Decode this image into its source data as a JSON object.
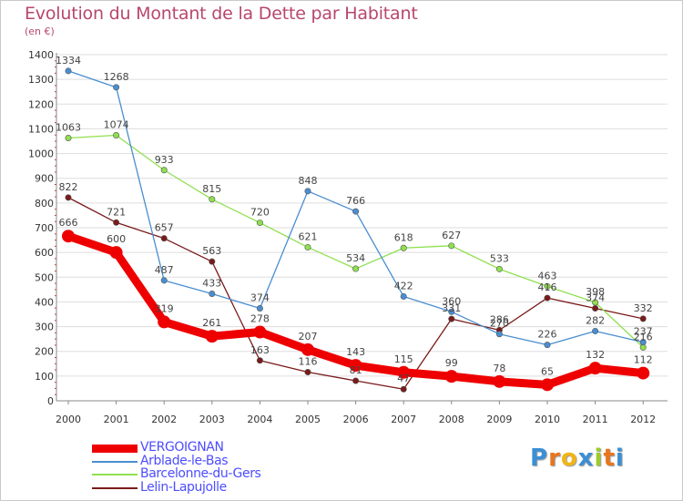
{
  "title": "Evolution du Montant de la Dette par Habitant",
  "subtitle": "(en €)",
  "logo": {
    "letters": [
      "P",
      "r",
      "o",
      "x",
      "i",
      "t",
      "i"
    ],
    "colors": [
      "#3a8fd6",
      "#e8761e",
      "#f2b515",
      "#3a8fd6",
      "#9ccc2c",
      "#e8761e",
      "#3a8fd6"
    ]
  },
  "chart_data": {
    "type": "line",
    "title": "Evolution du Montant de la Dette par Habitant",
    "ylabel": "(en €)",
    "xlabel": "",
    "ylim": [
      0,
      1400
    ],
    "yticks": [
      0,
      100,
      200,
      300,
      400,
      500,
      600,
      700,
      800,
      900,
      1000,
      1100,
      1200,
      1300,
      1400
    ],
    "grid": "horizontal",
    "legend_position": "bottom-left",
    "x": [
      "2000",
      "2001",
      "2002",
      "2003",
      "2004",
      "2005",
      "2006",
      "2007",
      "2008",
      "2009",
      "2010",
      "2011",
      "2012"
    ],
    "series": [
      {
        "name": "Lelin-Lapujolle",
        "color": "#7a1a1a",
        "values": [
          822,
          721,
          657,
          563,
          163,
          116,
          81,
          47,
          331,
          286,
          416,
          374,
          332
        ]
      },
      {
        "name": "Barcelonne-du-Gers",
        "color": "#8fe050",
        "values": [
          1063,
          1074,
          933,
          815,
          720,
          621,
          534,
          618,
          627,
          533,
          463,
          398,
          216
        ]
      },
      {
        "name": "Arblade-le-Bas",
        "color": "#4a8ed0",
        "values": [
          1334,
          1268,
          487,
          433,
          374,
          848,
          766,
          422,
          360,
          270,
          226,
          282,
          237
        ]
      },
      {
        "name": "VERGOIGNAN",
        "color": "#ee0000",
        "values": [
          666,
          600,
          319,
          261,
          278,
          207,
          143,
          115,
          99,
          78,
          65,
          132,
          112
        ]
      }
    ],
    "legend": [
      {
        "name": "VERGOIGNAN",
        "color": "#ee0000"
      },
      {
        "name": "Arblade-le-Bas",
        "color": "#4a8ed0"
      },
      {
        "name": "Barcelonne-du-Gers",
        "color": "#8fe050"
      },
      {
        "name": "Lelin-Lapujolle",
        "color": "#7a1a1a"
      }
    ],
    "legend_text_color": "#4d4dff"
  }
}
